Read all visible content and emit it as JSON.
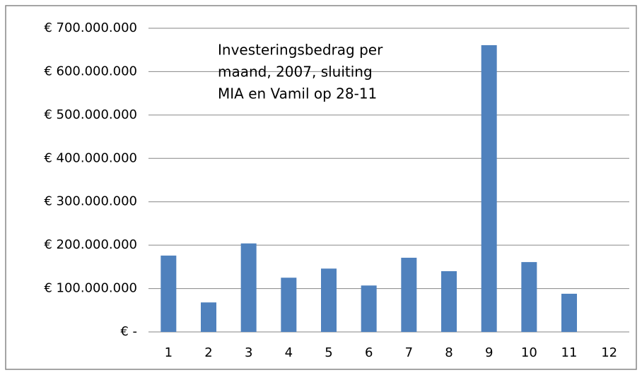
{
  "chart_data": {
    "type": "bar",
    "title": [
      "Investeringsbedrag per",
      "maand, 2007, sluiting",
      "MIA en Vamil op 28-11"
    ],
    "categories": [
      "1",
      "2",
      "3",
      "4",
      "5",
      "6",
      "7",
      "8",
      "9",
      "10",
      "11",
      "12"
    ],
    "values": [
      176000000,
      68000000,
      204000000,
      125000000,
      146000000,
      107000000,
      171000000,
      140000000,
      661000000,
      161000000,
      88000000,
      0
    ],
    "color": "#4f81bd",
    "ylim": [
      0,
      700000000
    ],
    "yticks": [
      {
        "value": 0,
        "label": "€ -"
      },
      {
        "value": 100000000,
        "label": "€ 100.000.000"
      },
      {
        "value": 200000000,
        "label": "€ 200.000.000"
      },
      {
        "value": 300000000,
        "label": "€ 300.000.000"
      },
      {
        "value": 400000000,
        "label": "€ 400.000.000"
      },
      {
        "value": 500000000,
        "label": "€ 500.000.000"
      },
      {
        "value": 600000000,
        "label": "€ 600.000.000"
      },
      {
        "value": 700000000,
        "label": "€ 700.000.000"
      }
    ],
    "grid": true
  }
}
